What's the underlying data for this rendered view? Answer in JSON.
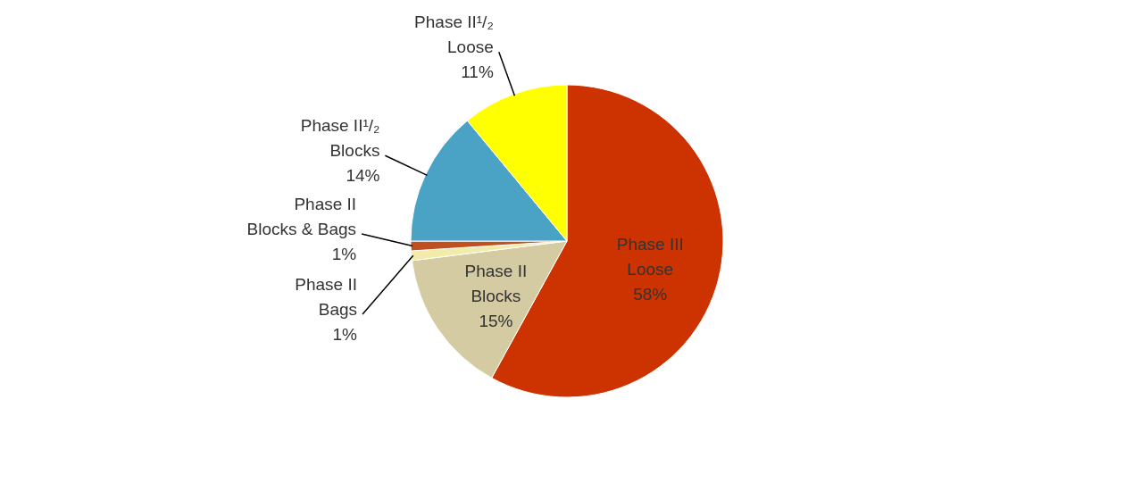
{
  "chart_data": {
    "type": "pie",
    "categories": [
      "Phase III Loose",
      "Phase II Blocks",
      "Phase II Bags",
      "Phase II Blocks & Bags",
      "Phase II¹/₂ Blocks",
      "Phase II¹/₂ Loose"
    ],
    "values": [
      58,
      15,
      1,
      1,
      14,
      11
    ],
    "value_labels": [
      "58%",
      "15%",
      "1%",
      "1%",
      "14%",
      "11%"
    ],
    "colors": [
      "#cc3300",
      "#d4cba3",
      "#f2eca8",
      "#c0501f",
      "#4aa3c4",
      "#ffff00"
    ]
  }
}
